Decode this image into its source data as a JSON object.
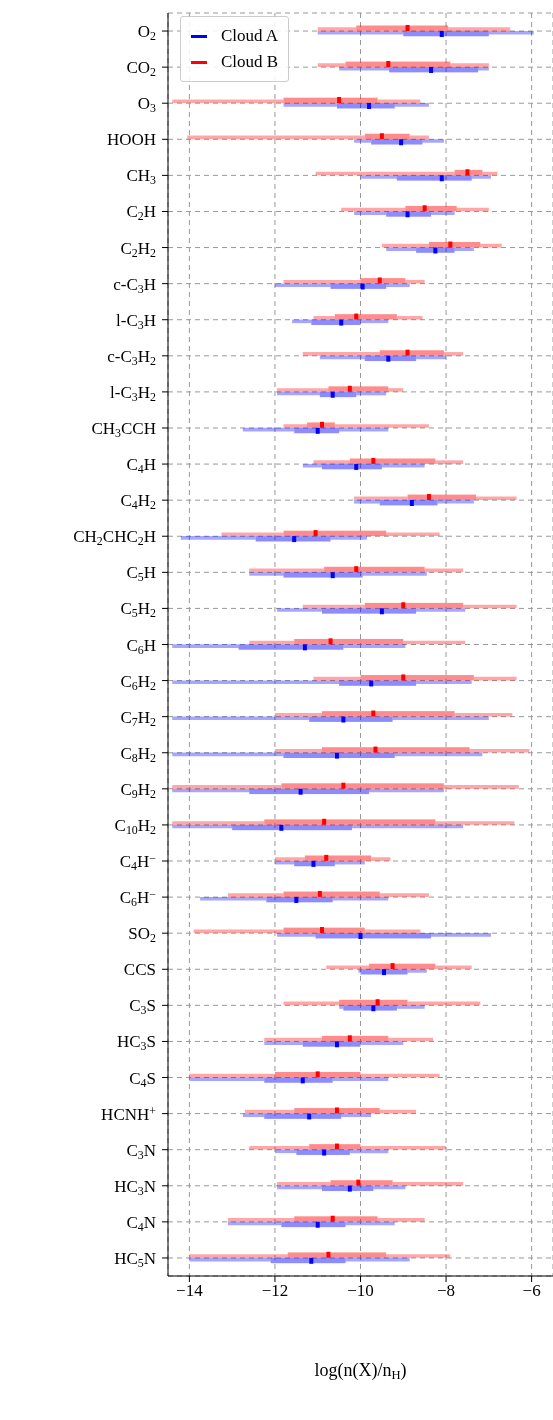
{
  "chart_data": {
    "type": "box",
    "orientation": "horizontal",
    "xlabel": "log(n(X)/n$_{H}$)",
    "categories": [
      "O$_{2}$",
      "CO$_{2}$",
      "O$_{3}$",
      "HOOH",
      "CH$_{3}$",
      "C$_{2}$H",
      "C$_{2}$H$_{2}$",
      "c-C$_{3}$H",
      "l-C$_{3}$H",
      "c-C$_{3}$H$_{2}$",
      "l-C$_{3}$H$_{2}$",
      "CH$_{3}$CCH",
      "C$_{4}$H",
      "C$_{4}$H$_{2}$",
      "CH$_{2}$CHC$_{2}$H",
      "C$_{5}$H",
      "C$_{5}$H$_{2}$",
      "C$_{6}$H",
      "C$_{6}$H$_{2}$",
      "C$_{7}$H$_{2}$",
      "C$_{8}$H$_{2}$",
      "C$_{9}$H$_{2}$",
      "C$_{10}$H$_{2}$",
      "C$_{4}$H$^{−}$",
      "C$_{6}$H$^{−}$",
      "SO$_{2}$",
      "CCS",
      "C$_{3}$S",
      "HC$_{3}$S",
      "C$_{4}$S",
      "HCNH$^{+}$",
      "C$_{3}$N",
      "HC$_{3}$N",
      "C$_{4}$N",
      "HC$_{5}$N"
    ],
    "xlim": [
      -14.5,
      -5.5
    ],
    "xticks": [
      {
        "value": -14,
        "label": "−14"
      },
      {
        "value": -12,
        "label": "−12"
      },
      {
        "value": -10,
        "label": "−10"
      },
      {
        "value": -8,
        "label": "−8"
      },
      {
        "value": -6,
        "label": "−6"
      }
    ],
    "grid": true,
    "legend": "top left",
    "series": [
      {
        "name": "Cloud A",
        "color": "#0000ff",
        "boxes": [
          {
            "low": -11,
            "q1": -9.0,
            "median": -8.1,
            "q3": -7.0,
            "high": -5.95
          },
          {
            "low": -10.5,
            "q1": -9.33,
            "median": -8.35,
            "q3": -7.25,
            "high": -7.0
          },
          {
            "low": -11.8,
            "q1": -10.55,
            "median": -9.8,
            "q3": -9.2,
            "high": -8.4
          },
          {
            "low": -10.15,
            "q1": -9.75,
            "median": -9.05,
            "q3": -8.55,
            "high": -8.05
          },
          {
            "low": -10,
            "q1": -9.15,
            "median": -8.1,
            "q3": -7.4,
            "high": -6.95
          },
          {
            "low": -10.15,
            "q1": -9.4,
            "median": -8.9,
            "q3": -8.35,
            "high": -7.8
          },
          {
            "low": -9.4,
            "q1": -8.7,
            "median": -8.25,
            "q3": -7.8,
            "high": -7.35
          },
          {
            "low": -12,
            "q1": -10.7,
            "median": -9.95,
            "q3": -9.4,
            "high": -8.85
          },
          {
            "low": -11.6,
            "q1": -11.15,
            "median": -10.45,
            "q3": -10,
            "high": -9.35
          },
          {
            "low": -10.95,
            "q1": -9.9,
            "median": -9.35,
            "q3": -8.7,
            "high": -8
          },
          {
            "low": -11.95,
            "q1": -10.95,
            "median": -10.65,
            "q3": -10.1,
            "high": -9.4
          },
          {
            "low": -12.75,
            "q1": -11.55,
            "median": -11,
            "q3": -10.5,
            "high": -9.35
          },
          {
            "low": -11.35,
            "q1": -10.9,
            "median": -10.1,
            "q3": -9.5,
            "high": -8.5
          },
          {
            "low": -10.15,
            "q1": -9.55,
            "median": -8.8,
            "q3": -8.2,
            "high": -7.35
          },
          {
            "low": -14.2,
            "q1": -12.45,
            "median": -11.55,
            "q3": -10.7,
            "high": -9.85
          },
          {
            "low": -12.6,
            "q1": -11.8,
            "median": -10.65,
            "q3": -9.95,
            "high": -8.45
          },
          {
            "low": -11.95,
            "q1": -10.9,
            "median": -9.5,
            "q3": -8.7,
            "high": -7.55
          },
          {
            "low": -14.4,
            "q1": -12.85,
            "median": -11.3,
            "q3": -10.4,
            "high": -8.95
          },
          {
            "low": -14.4,
            "q1": -10.5,
            "median": -9.75,
            "q3": -8.7,
            "high": -7.4
          },
          {
            "low": -14.4,
            "q1": -11.2,
            "median": -10.4,
            "q3": -9.25,
            "high": -7.0
          },
          {
            "low": -14.4,
            "q1": -11.8,
            "median": -10.55,
            "q3": -9.2,
            "high": -7.15
          },
          {
            "low": -14.4,
            "q1": -12.6,
            "median": -11.4,
            "q3": -9.8,
            "high": -8.05
          },
          {
            "low": -14.4,
            "q1": -13,
            "median": -11.85,
            "q3": -10.2,
            "high": -7.6
          },
          {
            "low": -12,
            "q1": -11.55,
            "median": -11.1,
            "q3": -10.6,
            "high": -9.9
          },
          {
            "low": -13.75,
            "q1": -12.2,
            "median": -11.5,
            "q3": -10.65,
            "high": -9.35
          },
          {
            "low": -11.95,
            "q1": -11.05,
            "median": -10.0,
            "q3": -8.35,
            "high": -6.95
          },
          {
            "low": -10.05,
            "q1": -10,
            "median": -9.45,
            "q3": -8.9,
            "high": -8.45
          },
          {
            "low": -10.5,
            "q1": -10.4,
            "median": -9.7,
            "q3": -9.15,
            "high": -8.5
          },
          {
            "low": -12.25,
            "q1": -11.35,
            "median": -10.55,
            "q3": -10,
            "high": -9.0
          },
          {
            "low": -14,
            "q1": -12.25,
            "median": -11.35,
            "q3": -10.65,
            "high": -9.35
          },
          {
            "low": -12.75,
            "q1": -12.25,
            "median": -11.2,
            "q3": -10.45,
            "high": -9.75
          },
          {
            "low": -12,
            "q1": -11.5,
            "median": -10.85,
            "q3": -10.25,
            "high": -9.35
          },
          {
            "low": -11.95,
            "q1": -10.9,
            "median": -10.25,
            "q3": -9.7,
            "high": -8.95
          },
          {
            "low": -13.1,
            "q1": -11.85,
            "median": -11.0,
            "q3": -10.35,
            "high": -9.2
          },
          {
            "low": -14,
            "q1": -12.1,
            "median": -11.15,
            "q3": -10.35,
            "high": -8.85
          }
        ]
      },
      {
        "name": "Cloud B",
        "color": "#ff0000",
        "boxes": [
          {
            "low": -11,
            "q1": -10.1,
            "median": -8.9,
            "q3": -7.95,
            "high": -6.5
          },
          {
            "low": -11,
            "q1": -10.35,
            "median": -9.35,
            "q3": -7.9,
            "high": -7.0
          },
          {
            "low": -14.4,
            "q1": -11.8,
            "median": -10.5,
            "q3": -9.6,
            "high": -8.6
          },
          {
            "low": -14.05,
            "q1": -9.9,
            "median": -9.5,
            "q3": -8.85,
            "high": -8.4
          },
          {
            "low": -11.05,
            "q1": -7.8,
            "median": -7.5,
            "q3": -7.15,
            "high": -6.8
          },
          {
            "low": -10.45,
            "q1": -8.95,
            "median": -8.5,
            "q3": -7.75,
            "high": -7.0
          },
          {
            "low": -9.5,
            "q1": -8.4,
            "median": -7.9,
            "q3": -7.2,
            "high": -6.7
          },
          {
            "low": -11.8,
            "q1": -10,
            "median": -9.55,
            "q3": -8.95,
            "high": -8.5
          },
          {
            "low": -11.1,
            "q1": -10.6,
            "median": -10.1,
            "q3": -9.15,
            "high": -8.55
          },
          {
            "low": -11.35,
            "q1": -9.55,
            "median": -8.9,
            "q3": -8.05,
            "high": -7.6
          },
          {
            "low": -11.95,
            "q1": -10.75,
            "median": -10.25,
            "q3": -9.35,
            "high": -9.0
          },
          {
            "low": -11.8,
            "q1": -11.25,
            "median": -10.9,
            "q3": -10.6,
            "high": -8.4
          },
          {
            "low": -11.1,
            "q1": -10.25,
            "median": -9.7,
            "q3": -8.25,
            "high": -7.6
          },
          {
            "low": -10.15,
            "q1": -8.9,
            "median": -8.4,
            "q3": -7.3,
            "high": -6.35
          },
          {
            "low": -13.25,
            "q1": -11.8,
            "median": -11.05,
            "q3": -9.4,
            "high": -8.15
          },
          {
            "low": -12.6,
            "q1": -10.85,
            "median": -10.1,
            "q3": -8.5,
            "high": -7.6
          },
          {
            "low": -11.35,
            "q1": -9.9,
            "median": -9.0,
            "q3": -7.6,
            "high": -6.35
          },
          {
            "low": -12.6,
            "q1": -11.55,
            "median": -10.7,
            "q3": -9.0,
            "high": -7.55
          },
          {
            "low": -11.1,
            "q1": -10,
            "median": -9.0,
            "q3": -7.35,
            "high": -6.35
          },
          {
            "low": -12,
            "q1": -10.9,
            "median": -9.7,
            "q3": -7.8,
            "high": -6.45
          },
          {
            "low": -12,
            "q1": -10.9,
            "median": -9.65,
            "q3": -7.45,
            "high": -6.05
          },
          {
            "low": -14.4,
            "q1": -11.85,
            "median": -10.4,
            "q3": -8.05,
            "high": -6.3
          },
          {
            "low": -14.4,
            "q1": -12.25,
            "median": -10.85,
            "q3": -8.25,
            "high": -6.4
          },
          {
            "low": -12,
            "q1": -11.3,
            "median": -10.8,
            "q3": -9.75,
            "high": -9.3
          },
          {
            "low": -13.1,
            "q1": -11.8,
            "median": -10.95,
            "q3": -9.55,
            "high": -8.4
          },
          {
            "low": -13.9,
            "q1": -11.8,
            "median": -10.9,
            "q3": -9.9,
            "high": -8.6
          },
          {
            "low": -10.8,
            "q1": -9.8,
            "median": -9.25,
            "q3": -8.25,
            "high": -7.4
          },
          {
            "low": -11.8,
            "q1": -10.5,
            "median": -9.6,
            "q3": -8.9,
            "high": -7.2
          },
          {
            "low": -12.25,
            "q1": -10.9,
            "median": -10.25,
            "q3": -9.35,
            "high": -8.3
          },
          {
            "low": -14,
            "q1": -12,
            "median": -11.0,
            "q3": -10,
            "high": -8.15
          },
          {
            "low": -12.7,
            "q1": -11.55,
            "median": -10.55,
            "q3": -9.55,
            "high": -8.7
          },
          {
            "low": -12.6,
            "q1": -11.2,
            "median": -10.55,
            "q3": -10,
            "high": -8
          },
          {
            "low": -11.95,
            "q1": -10.7,
            "median": -10.05,
            "q3": -9.25,
            "high": -7.6
          },
          {
            "low": -13.1,
            "q1": -11.55,
            "median": -10.65,
            "q3": -9.6,
            "high": -8.5
          },
          {
            "low": -14,
            "q1": -11.7,
            "median": -10.75,
            "q3": -9.4,
            "high": -7.9
          }
        ]
      }
    ]
  }
}
